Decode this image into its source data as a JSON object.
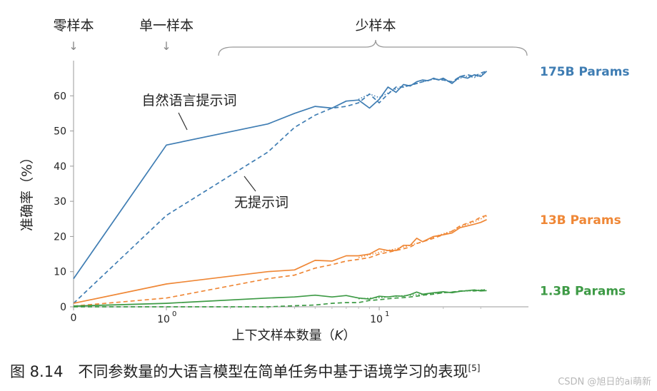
{
  "chart_data": {
    "type": "line",
    "xscale": "log",
    "ylabel": "准确率（%）",
    "xlabel": "上下文样本数量（K）",
    "xlabel_prefix": "上下文样本数量（",
    "xlabel_var": "K",
    "xlabel_suffix": "）",
    "ylim": [
      0,
      70
    ],
    "xlim": [
      0,
      32
    ],
    "y_ticks": [
      0,
      10,
      20,
      30,
      40,
      50,
      60
    ],
    "x_tick_labels": {
      "zero": "0",
      "one": "10",
      "one_exp": "0",
      "ten": "10",
      "ten_exp": "1"
    },
    "regime_labels": [
      {
        "text": "零样本",
        "x": 0
      },
      {
        "text": "单一样本",
        "x": 1
      },
      {
        "text": "少样本",
        "x": 10
      }
    ],
    "arrow_glyph": "↓",
    "annotations": [
      {
        "text": "自然语言提示词",
        "points_to": "175B prompt curve"
      },
      {
        "text": "无提示词",
        "points_to": "175B no-prompt curve"
      }
    ],
    "series": [
      {
        "name": "175B Params",
        "color": "#3f7db3",
        "style": "solid",
        "x": [
          0,
          1,
          3,
          4,
          5,
          6,
          7,
          8,
          9,
          10,
          11,
          12,
          13,
          14,
          15,
          16,
          17,
          18,
          19,
          20,
          22,
          24,
          26,
          28,
          30,
          32
        ],
        "y": [
          8,
          46,
          52,
          55,
          57,
          56.5,
          58.5,
          58.8,
          56.5,
          59,
          62.5,
          61,
          63.2,
          62.8,
          64,
          64.5,
          64.3,
          65,
          64.5,
          65,
          63.5,
          65.5,
          65,
          66,
          65.5,
          67
        ]
      },
      {
        "name": "",
        "color": "#3f7db3",
        "style": "dashed",
        "x": [
          0,
          1,
          3,
          4,
          5,
          6,
          7,
          8,
          9,
          10,
          11,
          12,
          13,
          14,
          15,
          16,
          18,
          20,
          22,
          24,
          26,
          28,
          30,
          32
        ],
        "y": [
          1,
          26,
          44,
          51,
          54.5,
          56.5,
          57,
          58,
          60.5,
          58,
          60.5,
          62.5,
          62.5,
          63,
          63.5,
          64,
          64.8,
          64.5,
          64,
          65.5,
          66,
          65.5,
          66.5,
          67
        ]
      },
      {
        "name": "",
        "color": "#3f7db3",
        "style": "dotted",
        "x": [
          8,
          9,
          10,
          12,
          14,
          16,
          18,
          20,
          22,
          24,
          26,
          28,
          30,
          32
        ],
        "y": [
          59,
          60.5,
          59.5,
          62,
          63,
          64,
          64.7,
          64.5,
          63.8,
          65,
          65.6,
          65.2,
          66,
          66.8
        ]
      },
      {
        "name": "13B Params",
        "color": "#ef8736",
        "style": "solid",
        "x": [
          0,
          1,
          3,
          4,
          5,
          6,
          7,
          8,
          9,
          10,
          11,
          12,
          13,
          14,
          15,
          16,
          18,
          20,
          22,
          24,
          26,
          28,
          30,
          32
        ],
        "y": [
          1,
          6.5,
          10,
          10.5,
          13.2,
          13,
          14.5,
          14.5,
          15,
          16.5,
          16,
          16,
          17.5,
          17.5,
          19.5,
          18.5,
          20,
          20.5,
          21,
          22.5,
          23,
          23.5,
          24,
          24.8
        ]
      },
      {
        "name": "",
        "color": "#ef8736",
        "style": "dashed",
        "x": [
          0,
          1,
          3,
          4,
          5,
          6,
          7,
          8,
          9,
          10,
          11,
          12,
          13,
          14,
          15,
          16,
          18,
          20,
          22,
          24,
          26,
          28,
          30,
          32
        ],
        "y": [
          0.2,
          2.5,
          8,
          9,
          11,
          12,
          13,
          13.5,
          14,
          15,
          15.5,
          16,
          16.5,
          17,
          18,
          18.5,
          19.5,
          20.5,
          21.5,
          23,
          23.8,
          24.5,
          25.5,
          26
        ]
      },
      {
        "name": "",
        "color": "#ef8736",
        "style": "dotted",
        "x": [
          8,
          10,
          12,
          14,
          16,
          18,
          20,
          22,
          24,
          26,
          28,
          30,
          32
        ],
        "y": [
          14,
          15.5,
          16.5,
          17.5,
          18.5,
          19.8,
          20.8,
          21.5,
          22.8,
          23.5,
          24.2,
          25,
          25.8
        ]
      },
      {
        "name": "1.3B Params",
        "color": "#3d9a45",
        "style": "solid",
        "x": [
          0,
          1,
          3,
          4,
          5,
          6,
          7,
          8,
          9,
          10,
          11,
          12,
          13,
          14,
          15,
          16,
          18,
          20,
          22,
          24,
          26,
          28,
          30,
          32
        ],
        "y": [
          0.2,
          1,
          2.5,
          2.8,
          3.3,
          2.8,
          3.2,
          2.5,
          2.2,
          3,
          2.8,
          3.1,
          3,
          3.5,
          4.2,
          3.6,
          4,
          4.3,
          4,
          4.4,
          4.6,
          4.8,
          4.5,
          4.6
        ]
      },
      {
        "name": "",
        "color": "#3d9a45",
        "style": "dashed",
        "x": [
          0,
          1,
          3,
          4,
          5,
          6,
          7,
          8,
          9,
          10,
          11,
          12,
          13,
          14,
          15,
          16,
          18,
          20,
          22,
          24,
          26,
          28,
          30,
          32
        ],
        "y": [
          0,
          0,
          0,
          0.3,
          0.5,
          1,
          1.2,
          1.2,
          1.8,
          2,
          2.3,
          2.5,
          2.6,
          2.8,
          3,
          3.3,
          3.6,
          4,
          4.2,
          4.5,
          4.6,
          4.5,
          4.7,
          4.8
        ]
      },
      {
        "name": "",
        "color": "#3d9a45",
        "style": "dotted",
        "x": [
          8,
          10,
          12,
          14,
          16,
          18,
          20,
          22,
          24,
          26,
          28,
          30,
          32
        ],
        "y": [
          2.3,
          2.6,
          3,
          3.3,
          3.5,
          3.8,
          4,
          4.2,
          4.4,
          4.5,
          4.6,
          4.8,
          4.9
        ]
      }
    ]
  },
  "caption": {
    "text": "图 8.14　不同参数量的大语言模型在简单任务中基于语境学习的表现",
    "ref": "[5]"
  },
  "watermark": "CSDN @旭日的ai萌新"
}
